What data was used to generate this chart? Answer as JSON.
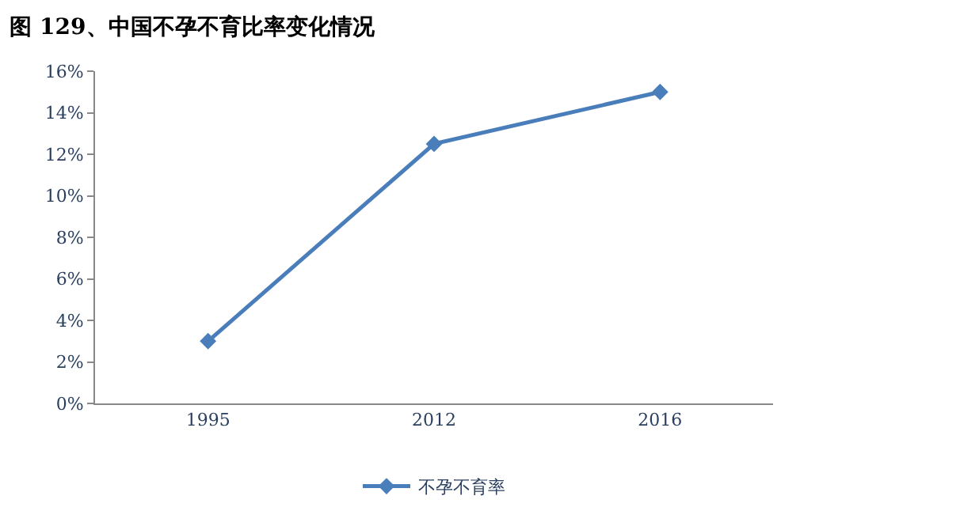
{
  "chart_data": {
    "type": "line",
    "title": "图 129、中国不孕不育比率变化情况",
    "categories": [
      "1995",
      "2012",
      "2016"
    ],
    "series": [
      {
        "name": "不孕不育率",
        "color": "#4a7ebb",
        "values": [
          3,
          12.5,
          15
        ]
      }
    ],
    "ylim": [
      0,
      16
    ],
    "yticks": [
      {
        "value": 0,
        "label": "0%"
      },
      {
        "value": 2,
        "label": "2%"
      },
      {
        "value": 4,
        "label": "4%"
      },
      {
        "value": 6,
        "label": "6%"
      },
      {
        "value": 8,
        "label": "8%"
      },
      {
        "value": 10,
        "label": "10%"
      },
      {
        "value": 12,
        "label": "12%"
      },
      {
        "value": 14,
        "label": "14%"
      },
      {
        "value": 16,
        "label": "16%"
      }
    ],
    "legend": "bottom",
    "marker": "diamond",
    "line_style": "solid"
  }
}
